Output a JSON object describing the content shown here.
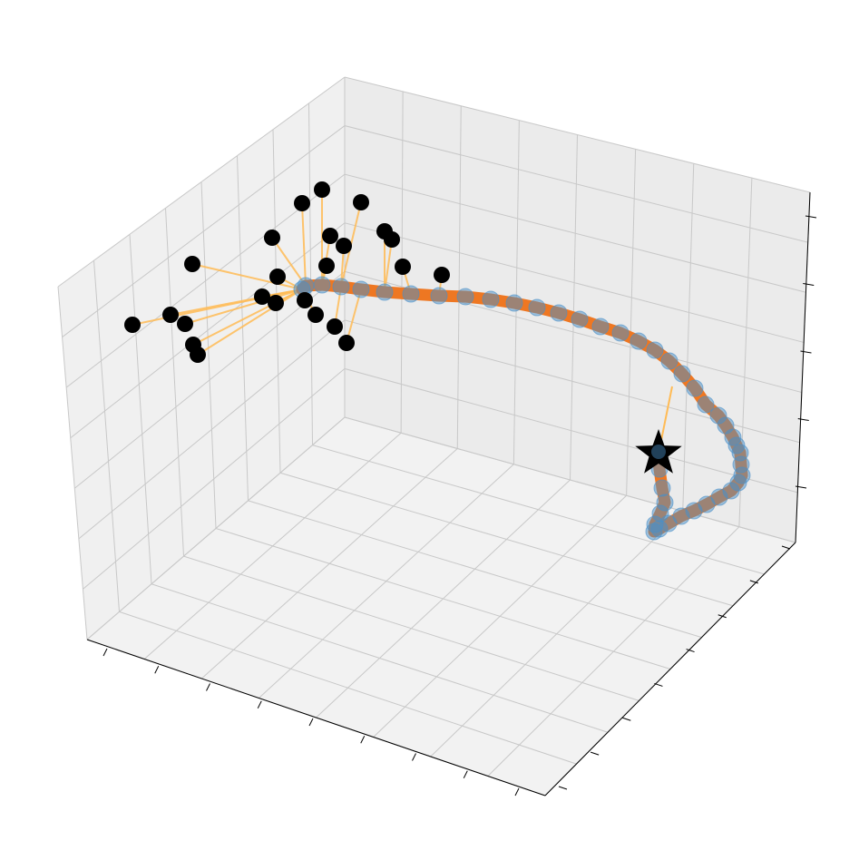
{
  "chart_data": {
    "type": "scatter",
    "projection": "3d",
    "title": "",
    "xlabel": "",
    "ylabel": "",
    "zlabel": "",
    "tick_labels_shown": false,
    "grid": true,
    "legend": "none",
    "colors": {
      "pane_left": "#f0f0f0",
      "pane_back": "#ebebeb",
      "pane_floor": "#f2f2f2",
      "grid": "#c8c8c8",
      "axis_line": "#000000",
      "trajectory": "#ee7722",
      "trajectory_points": "#4a90c8",
      "connector_lines": "#ffbb55",
      "observations": "#000000",
      "target_marker": "#000000"
    },
    "series": [
      {
        "name": "",
        "kind": "observations",
        "marker": "circle",
        "points": [
          [
            146,
            358
          ],
          [
            188,
            347
          ],
          [
            204,
            357
          ],
          [
            213,
            380
          ],
          [
            218,
            391
          ],
          [
            212,
            291
          ],
          [
            289,
            327
          ],
          [
            304,
            334
          ],
          [
            306,
            305
          ],
          [
            300,
            262
          ],
          [
            333,
            224
          ],
          [
            355,
            209
          ],
          [
            398,
            223
          ],
          [
            364,
            260
          ],
          [
            379,
            271
          ],
          [
            424,
            255
          ],
          [
            432,
            264
          ],
          [
            444,
            294
          ],
          [
            487,
            303
          ],
          [
            360,
            293
          ],
          [
            336,
            331
          ],
          [
            348,
            347
          ],
          [
            369,
            360
          ],
          [
            382,
            378
          ]
        ]
      },
      {
        "name": "",
        "kind": "trajectory_points",
        "marker": "circle",
        "points": [
          [
            333,
            319
          ],
          [
            337,
            315
          ],
          [
            355,
            314
          ],
          [
            376,
            316
          ],
          [
            398,
            319
          ],
          [
            424,
            322
          ],
          [
            453,
            324
          ],
          [
            484,
            326
          ],
          [
            513,
            327
          ],
          [
            541,
            330
          ],
          [
            567,
            334
          ],
          [
            592,
            339
          ],
          [
            616,
            345
          ],
          [
            639,
            352
          ],
          [
            662,
            360
          ],
          [
            684,
            367
          ],
          [
            704,
            376
          ],
          [
            722,
            386
          ],
          [
            738,
            398
          ],
          [
            752,
            412
          ],
          [
            766,
            428
          ],
          [
            778,
            446
          ],
          [
            792,
            458
          ],
          [
            800,
            469
          ],
          [
            808,
            482
          ],
          [
            812,
            491
          ],
          [
            816,
            499
          ],
          [
            817,
            512
          ],
          [
            818,
            524
          ],
          [
            814,
            532
          ],
          [
            806,
            541
          ],
          [
            793,
            548
          ],
          [
            779,
            556
          ],
          [
            765,
            563
          ],
          [
            751,
            569
          ],
          [
            737,
            577
          ],
          [
            727,
            583
          ],
          [
            721,
            586
          ],
          [
            722,
            578
          ],
          [
            728,
            566
          ],
          [
            733,
            554
          ],
          [
            730,
            538
          ],
          [
            727,
            517
          ],
          [
            725,
            498
          ]
        ]
      }
    ],
    "target": {
      "marker": "star",
      "point": [
        726,
        500
      ]
    }
  }
}
